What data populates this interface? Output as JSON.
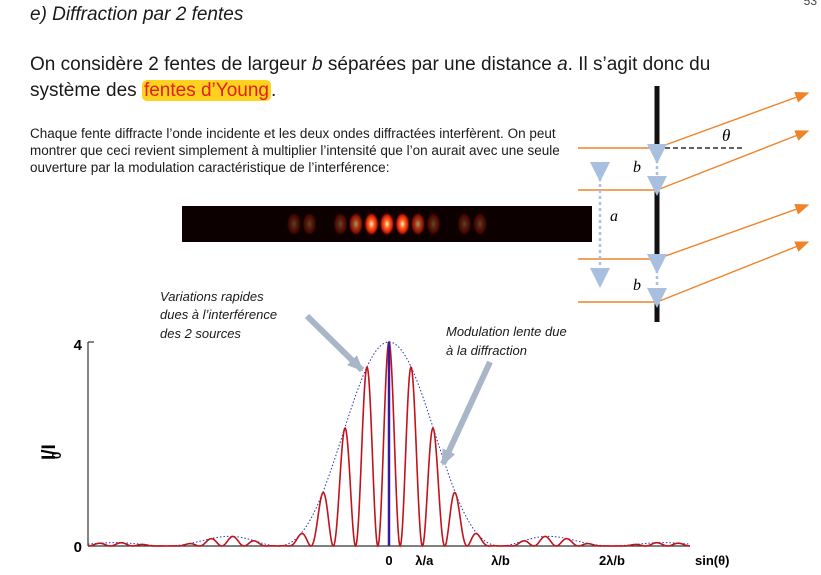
{
  "page_number": "53",
  "section_title": "e) Diffraction par 2 fentes",
  "intro": {
    "part1": "On considère 2 fentes de largeur ",
    "b": "b",
    "part2": " séparées par une distance ",
    "a": "a",
    "part3": ".  Il s’agit donc du système des ",
    "highlight": "fentes d’Young",
    "end": "."
  },
  "paragraph": "Chaque fente diffracte l’onde incidente et les deux ondes diffractées interfèrent. On peut montrer que ceci revient simplement à multiplier l’intensité que l’on aurait avec une seule ouverture par la modulation caractéristique de l’interférence:",
  "diagram": {
    "label_b_top": "b",
    "label_a": "a",
    "label_b_bottom": "b",
    "label_theta": "θ"
  },
  "annotations": {
    "rapid": [
      "Variations rapides",
      "dues à l’interférence",
      "des 2 sources"
    ],
    "slow": [
      "Modulation lente due",
      "à la diffraction"
    ]
  },
  "colors": {
    "fringe": "#ff3b1a",
    "interference_curve": "#c0141c",
    "envelope": "#2233aa",
    "rays": "#f0832a",
    "highlight_bg": "#ffd21f",
    "highlight_text": "#e0201b"
  },
  "chart_data": {
    "type": "line",
    "ylabel": "I/I0",
    "ylabel_main": "I/I",
    "ylabel_sub": "0",
    "y_ticks": [
      "0",
      "4"
    ],
    "ylim": [
      0,
      4
    ],
    "xlim": [
      -2.7,
      2.7
    ],
    "x_tick_labels": [
      {
        "value": 0,
        "label": "0"
      },
      {
        "value": 0.2,
        "label": "λ/a"
      },
      {
        "value": 1,
        "label": "λ/b"
      },
      {
        "value": 2,
        "label": "2λ/b"
      }
    ],
    "xlabel": "sin(θ)",
    "a_over_b": 5,
    "series": [
      {
        "function": "4·sinc²(b·sinθ/λ)·cos²(π·a·sinθ/λ)"
      },
      {
        "function": "4·sinc²(b·sinθ/λ)"
      }
    ],
    "center_marker": {
      "value": 0,
      "color": "#3a1b9e"
    }
  }
}
